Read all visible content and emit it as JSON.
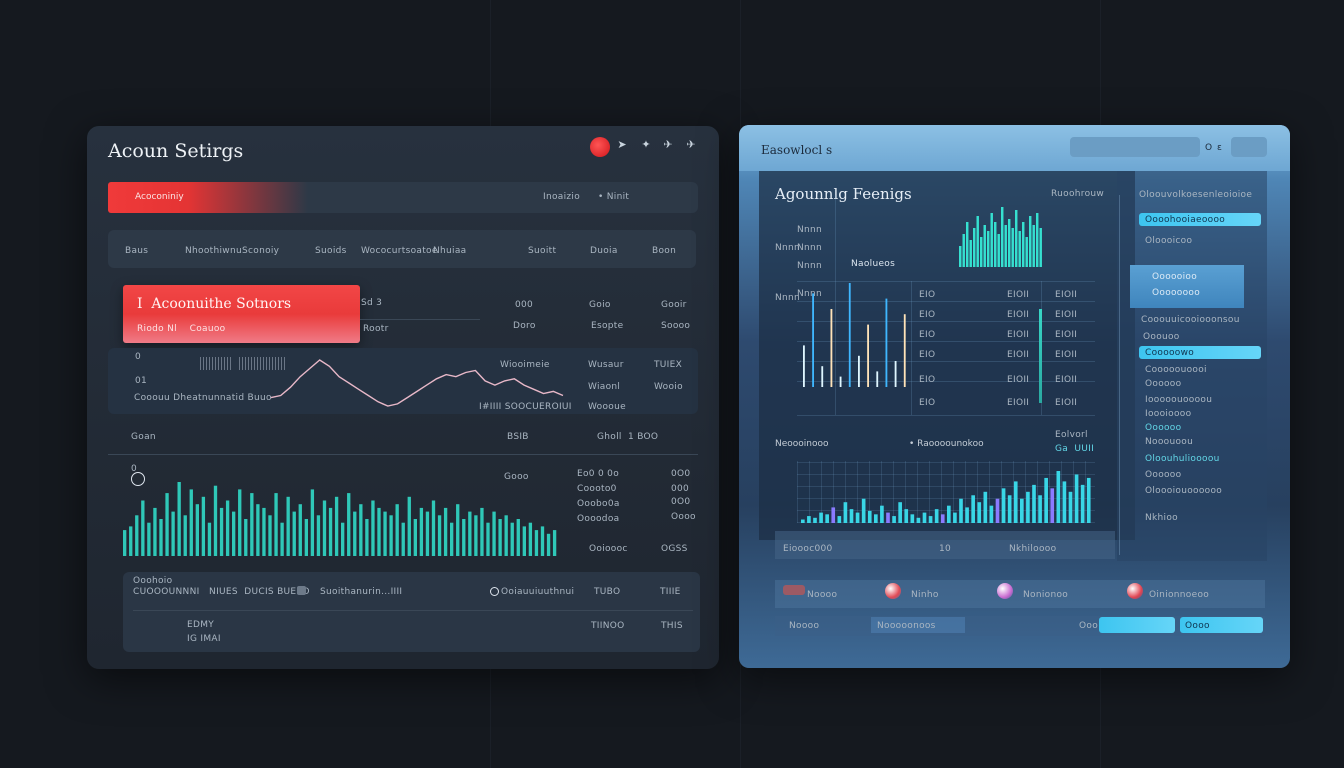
{
  "colors": {
    "accent_red": "#ef3b3b",
    "accent_teal": "#2fd0c0",
    "accent_blue": "#4fc3f7",
    "bg": "#15191f"
  },
  "left_window": {
    "title": "Acoun Setirgs",
    "controls": [
      "record-icon",
      "up-arrow-icon",
      "star-icon",
      "bird-icon",
      "plane-icon"
    ],
    "red_bar_text": "Acoconiniy",
    "red_bar_right": [
      "Inoaizio",
      "• Ninit"
    ],
    "column_headers": [
      "Baus",
      "Nhoothiwnu",
      "Sconoiy",
      "Suoids",
      "Wococurtsoatoe",
      "Nhuiaa",
      "Suoitt",
      "Duoia",
      "Boon"
    ],
    "settings_card": {
      "title": "I  Acoonuithe Sotnors",
      "subtitle": "Riodo Nl    Coauoo"
    },
    "settings_meta": [
      "Sd 3",
      "Rootr"
    ],
    "row1": {
      "cols": [
        [
          "000",
          "Doro"
        ],
        [
          "Goio",
          "Esopte"
        ],
        [
          "Gooir",
          "Soooo"
        ]
      ]
    },
    "line_row": {
      "labels": [
        "0",
        "01"
      ],
      "caption": "Cooouu Dheatnunnatid Buuo",
      "right_labels": [
        "Wiooimeie",
        "Wusaur",
        "TUIEX",
        "Wiaonl",
        "Wooio",
        "Woooue"
      ],
      "sub": "I#IIII SOOCUEROIUI"
    },
    "row_stat": {
      "left": "Goan",
      "mid": "BSIB",
      "mid2": "Gholl  1 BOO"
    },
    "bar_row": {
      "top_labels": [
        "0",
        "0"
      ],
      "right_labels": [
        [
          "Gooo",
          "Eo0 0 0o",
          "0O0"
        ],
        [
          "",
          "Coooto0",
          "000"
        ],
        [
          "",
          "Ooobo0a",
          "0O0"
        ],
        [
          "",
          "Oooodoa",
          "Oooo"
        ],
        [
          "",
          "Ooioooc",
          "OGSS"
        ]
      ]
    },
    "bottom_card": {
      "line1": "Ooohoio",
      "line2": "CUOOOUNNNI   NIUES  DUCIS BUEIIO",
      "icon_label": "Suoithanurin...IIII",
      "status_label": "Ooiauuiuuthnui",
      "right": [
        [
          "TUBO",
          "TIIIE"
        ],
        [
          "TIINOO",
          "THIS"
        ]
      ],
      "footer": [
        "EDMY",
        "IG IMAI"
      ]
    }
  },
  "line_chart_left": {
    "type": "line",
    "points": [
      0,
      1,
      2,
      3,
      4,
      5,
      6,
      7,
      8,
      9,
      10,
      11,
      12,
      13,
      14,
      15,
      16,
      17,
      18,
      19,
      20,
      21,
      22,
      23,
      24,
      25,
      26,
      27,
      28,
      29,
      30
    ],
    "values": [
      4,
      5,
      9,
      14,
      18,
      22,
      19,
      14,
      11,
      8,
      5,
      2,
      0,
      1,
      4,
      7,
      10,
      13,
      15,
      14,
      16,
      17,
      12,
      10,
      12,
      13,
      10,
      8,
      6,
      7,
      5
    ]
  },
  "bar_chart_left": {
    "type": "bar",
    "values": [
      14,
      16,
      22,
      30,
      18,
      26,
      20,
      34,
      24,
      40,
      22,
      36,
      28,
      32,
      18,
      38,
      26,
      30,
      24,
      36,
      20,
      34,
      28,
      26,
      22,
      34,
      18,
      32,
      24,
      28,
      20,
      36,
      22,
      30,
      26,
      32,
      18,
      34,
      24,
      28,
      20,
      30,
      26,
      24,
      22,
      28,
      18,
      32,
      20,
      26,
      24,
      30,
      22,
      26,
      18,
      28,
      20,
      24,
      22,
      26,
      18,
      24,
      20,
      22,
      18,
      20,
      16,
      18,
      14,
      16,
      12,
      14
    ]
  },
  "right_window": {
    "title": "Easowlocl s",
    "search_value": "",
    "top_icons": [
      "O",
      "ε"
    ],
    "panel_title": "Agounnlg Feenigs",
    "panel_sub": "Ruoohrouw",
    "chart_label": "Naolueos",
    "left_axis": [
      "Nnnn",
      "Nnnn",
      "Nnnn",
      "Nnnn",
      "Nnnn",
      "Nnnn",
      "Nnnn",
      "Nnnn"
    ],
    "table_cols": [
      [
        "EIO",
        "EIO",
        "EIO",
        "EIO",
        "EIO",
        "EIO"
      ],
      [
        "EIOII",
        "EIOII",
        "EIOII",
        "EIOII",
        "EIOII",
        "EIOII"
      ],
      [
        "EIOII",
        "EIOII",
        "EIOII",
        "EIOII",
        "EIOII",
        "EIOII"
      ]
    ],
    "mini_title": "Neoooinooo",
    "mini_title2": "• Raoooounokoo",
    "mini_right": [
      "Eolvorl",
      "Ga  UUII"
    ],
    "footer_strip": [
      "Eioooc000",
      "10",
      "Nkhiloooo"
    ],
    "side_title": "Oloouvolkoesenleoioioe",
    "side_items": [
      "Oooohooiaeoooo",
      "Oloooicoo",
      "Cooouuicooiooonsou",
      "Ooouoo",
      "Cooooowo",
      "Cooooouoooi",
      "Oooooo",
      "Iooooouoooou",
      "Ioooioooo",
      "Oooooo",
      "Nooouoou",
      "Oloouhulioooou",
      "Oooooo",
      "Oloooiouoooooo",
      "Nkhioo"
    ],
    "side_card": [
      "Oooooioo",
      "Oooooooo",
      "Oooooo"
    ],
    "bottom_items": [
      {
        "label": "Noooo",
        "value": "Noooo"
      },
      {
        "label": "Ninho",
        "value": "Nooooonoos"
      },
      {
        "label": "Nonionoo",
        "value": "Ooo"
      },
      {
        "label": "Oinionnoeoo",
        "value": "Oooo"
      }
    ]
  },
  "bar_chart_right_top": {
    "type": "bar",
    "values": [
      14,
      22,
      30,
      18,
      26,
      34,
      20,
      28,
      24,
      36,
      30,
      22,
      40,
      28,
      32,
      26,
      38,
      24,
      30,
      20,
      34,
      28,
      36,
      26
    ]
  },
  "bar_chart_right_mid": {
    "type": "bar",
    "values": [
      40,
      90,
      20,
      75,
      10,
      100,
      30,
      60,
      15,
      85,
      25,
      70
    ]
  },
  "bar_chart_right_bottom": {
    "type": "bar",
    "values": [
      2,
      4,
      3,
      6,
      5,
      9,
      4,
      12,
      8,
      6,
      14,
      7,
      5,
      10,
      6,
      4,
      12,
      8,
      5,
      3,
      6,
      4,
      8,
      5,
      10,
      6,
      14,
      9,
      16,
      12,
      18,
      10,
      14,
      20,
      16,
      24,
      14,
      18,
      22,
      16,
      26,
      20,
      30,
      24,
      18,
      28,
      22,
      26
    ]
  }
}
